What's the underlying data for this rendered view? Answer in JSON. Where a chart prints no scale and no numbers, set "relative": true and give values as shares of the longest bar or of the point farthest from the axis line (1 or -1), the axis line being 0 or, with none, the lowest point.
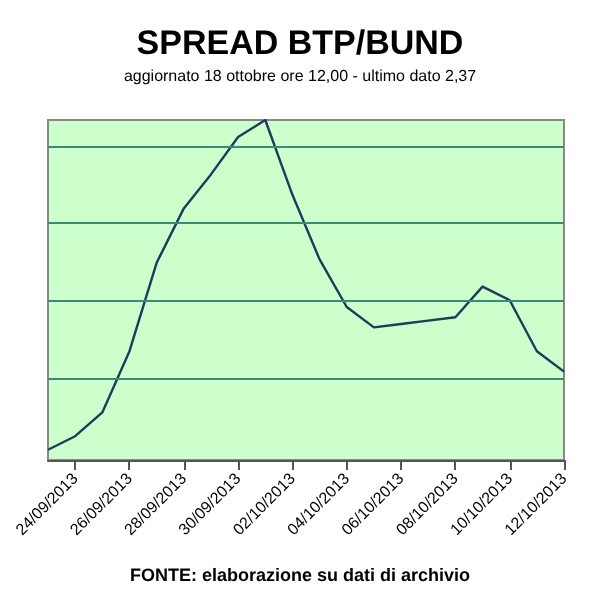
{
  "chart_data": {
    "type": "line",
    "title": "SPREAD BTP/BUND",
    "subtitle": "aggiornato 18 ottobre ore 12,00 - ultimo dato 2,37",
    "annotations": [
      "FONTE: elaborazione su dati di archivio"
    ],
    "categories": [
      null,
      "24/09/2013",
      null,
      "26/09/2013",
      null,
      "28/09/2013",
      null,
      "30/09/2013",
      null,
      "02/10/2013",
      null,
      "04/10/2013",
      null,
      "06/10/2013",
      null,
      "08/10/2013",
      null,
      "10/10/2013",
      null,
      "12/10/2013"
    ],
    "relative": true,
    "marker": "none",
    "line_style": "solid",
    "ref_lines": [
      {
        "axis": "y",
        "value": 0.24,
        "color": "#3a8a7a"
      },
      {
        "axis": "y",
        "value": 0.47,
        "color": "#3a8a7a"
      },
      {
        "axis": "y",
        "value": 0.7,
        "color": "#3a8a7a"
      },
      {
        "axis": "y",
        "value": 0.92,
        "color": "#3a8a7a"
      }
    ],
    "series": [
      {
        "color": "#1f3a5a",
        "values": [
          0.03,
          0.07,
          0.14,
          0.32,
          0.58,
          0.74,
          0.84,
          0.95,
          1,
          0.78,
          0.59,
          0.45,
          0.39,
          0.4,
          0.41,
          0.42,
          0.51,
          0.47,
          0.32,
          0.26
        ]
      }
    ]
  }
}
